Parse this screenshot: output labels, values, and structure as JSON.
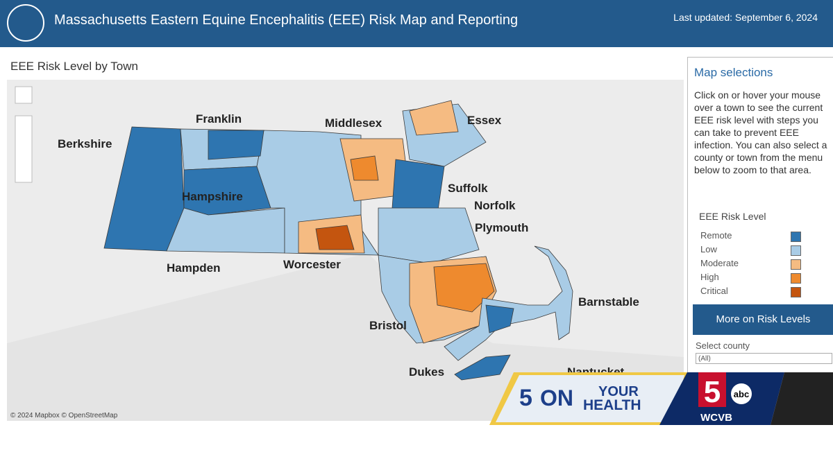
{
  "header": {
    "title": "Massachusetts Eastern Equine Encephalitis (EEE) Risk Map and Reporting",
    "last_updated": "Last updated: September 6, 2024"
  },
  "map": {
    "title": "EEE Risk Level by Town",
    "county_labels": [
      "Berkshire",
      "Franklin",
      "Middlesex",
      "Essex",
      "Hampshire",
      "Suffolk",
      "Norfolk",
      "Plymouth",
      "Hampden",
      "Worcester",
      "Barnstable",
      "Bristol",
      "Dukes",
      "Nantucket"
    ],
    "attribution": "© 2024 Mapbox © OpenStreetMap"
  },
  "sidebar": {
    "title": "Map selections",
    "description": "Click on or hover your mouse over a town to see the current EEE risk level with steps you can take to prevent EEE infection. You can also select a county or town from the menu below to zoom to that area.",
    "legend": {
      "title": "EEE Risk Level",
      "items": [
        {
          "label": "Remote",
          "color": "#2e75b0"
        },
        {
          "label": "Low",
          "color": "#a9cce6"
        },
        {
          "label": "Moderate",
          "color": "#f5bb82"
        },
        {
          "label": "High",
          "color": "#ee8a2e"
        },
        {
          "label": "Critical",
          "color": "#c4550f"
        }
      ]
    },
    "button": "More on Risk Levels",
    "select_label": "Select county",
    "select_value": "(All)"
  },
  "overlay": {
    "logo_number": "5",
    "line1": "ON",
    "line2": "YOUR",
    "line3": "HEALTH",
    "station_number": "5",
    "network": "abc",
    "station": "WCVB"
  }
}
